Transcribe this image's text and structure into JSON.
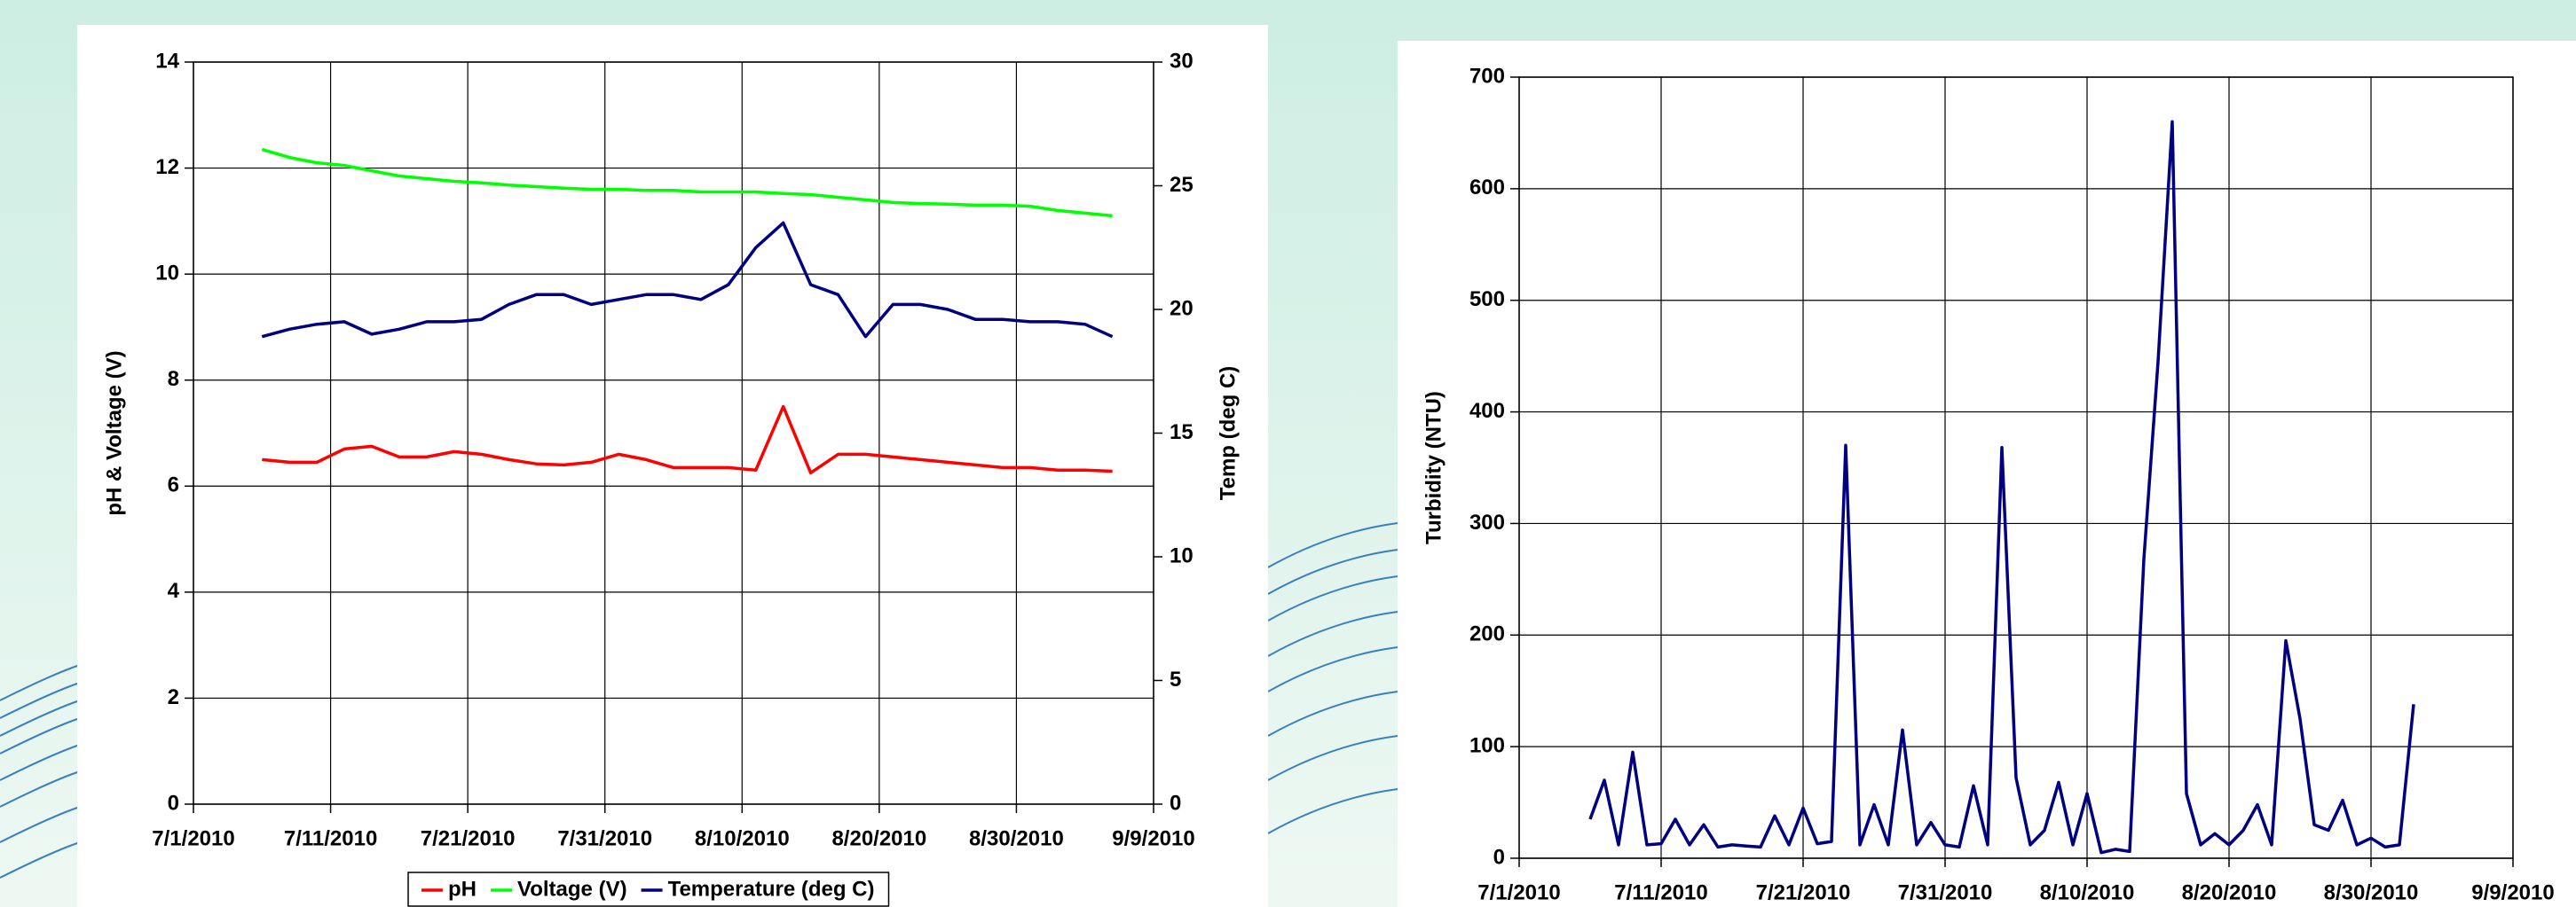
{
  "chart_data": [
    {
      "type": "line",
      "y_label": "pH & Voltage (V)",
      "y2_label": "Temp (deg C)",
      "x": [
        "7/6/2010",
        "7/8/2010",
        "7/10/2010",
        "7/12/2010",
        "7/14/2010",
        "7/16/2010",
        "7/18/2010",
        "7/20/2010",
        "7/22/2010",
        "7/24/2010",
        "7/26/2010",
        "7/28/2010",
        "7/30/2010",
        "8/1/2010",
        "8/3/2010",
        "8/5/2010",
        "8/7/2010",
        "8/9/2010",
        "8/11/2010",
        "8/13/2010",
        "8/15/2010",
        "8/17/2010",
        "8/19/2010",
        "8/21/2010",
        "8/23/2010",
        "8/25/2010",
        "8/27/2010",
        "8/29/2010",
        "8/31/2010",
        "9/2/2010",
        "9/4/2010",
        "9/6/2010"
      ],
      "series": [
        {
          "name": "pH",
          "color": "#ff0000",
          "axis": "y",
          "values": [
            6.5,
            6.45,
            6.45,
            6.7,
            6.75,
            6.55,
            6.55,
            6.65,
            6.6,
            6.5,
            6.42,
            6.4,
            6.45,
            6.6,
            6.5,
            6.35,
            6.35,
            6.35,
            6.3,
            7.5,
            6.25,
            6.6,
            6.6,
            6.55,
            6.5,
            6.45,
            6.4,
            6.35,
            6.35,
            6.3,
            6.3,
            6.28
          ]
        },
        {
          "name": "Voltage (V)",
          "color": "#00ff00",
          "axis": "y",
          "values": [
            12.35,
            12.2,
            12.1,
            12.05,
            11.95,
            11.85,
            11.8,
            11.75,
            11.72,
            11.68,
            11.65,
            11.62,
            11.6,
            11.6,
            11.58,
            11.58,
            11.55,
            11.55,
            11.55,
            11.52,
            11.5,
            11.45,
            11.4,
            11.35,
            11.33,
            11.32,
            11.3,
            11.3,
            11.28,
            11.2,
            11.15,
            11.1
          ]
        },
        {
          "name": "Temperature (deg C)",
          "color": "#000080",
          "axis": "y2",
          "values": [
            18.9,
            19.2,
            19.4,
            19.5,
            19.0,
            19.2,
            19.5,
            19.5,
            19.6,
            20.2,
            20.6,
            20.6,
            20.2,
            20.4,
            20.6,
            20.6,
            20.4,
            21.0,
            22.5,
            23.5,
            21.0,
            20.6,
            18.9,
            20.2,
            20.2,
            20.0,
            19.6,
            19.6,
            19.5,
            19.5,
            19.4,
            18.9
          ]
        }
      ],
      "xlim": [
        "7/1/2010",
        "9/9/2010"
      ],
      "xticks": [
        "7/1/2010",
        "7/11/2010",
        "7/21/2010",
        "7/31/2010",
        "8/10/2010",
        "8/20/2010",
        "8/30/2010",
        "9/9/2010"
      ],
      "ylim": [
        0,
        14
      ],
      "yticks": [
        0,
        2,
        4,
        6,
        8,
        10,
        12,
        14
      ],
      "y2lim": [
        0,
        30
      ],
      "y2ticks": [
        0,
        5,
        10,
        15,
        20,
        25,
        30
      ],
      "grid": true,
      "legend": "bottom"
    },
    {
      "type": "line",
      "y_label": "Turbidity (NTU)",
      "x": [
        "7/6/2010",
        "7/7/2010",
        "7/8/2010",
        "7/9/2010",
        "7/10/2010",
        "7/11/2010",
        "7/12/2010",
        "7/13/2010",
        "7/14/2010",
        "7/15/2010",
        "7/16/2010",
        "7/17/2010",
        "7/18/2010",
        "7/19/2010",
        "7/20/2010",
        "7/21/2010",
        "7/22/2010",
        "7/23/2010",
        "7/24/2010",
        "7/25/2010",
        "7/26/2010",
        "7/27/2010",
        "7/28/2010",
        "7/29/2010",
        "7/30/2010",
        "7/31/2010",
        "8/1/2010",
        "8/2/2010",
        "8/3/2010",
        "8/4/2010",
        "8/5/2010",
        "8/6/2010",
        "8/7/2010",
        "8/8/2010",
        "8/9/2010",
        "8/10/2010",
        "8/11/2010",
        "8/12/2010",
        "8/13/2010",
        "8/14/2010",
        "8/15/2010",
        "8/16/2010",
        "8/17/2010",
        "8/18/2010",
        "8/19/2010",
        "8/20/2010",
        "8/21/2010",
        "8/22/2010",
        "8/23/2010",
        "8/24/2010",
        "8/25/2010",
        "8/26/2010",
        "8/27/2010",
        "8/28/2010",
        "8/29/2010",
        "8/30/2010",
        "8/31/2010",
        "9/1/2010",
        "9/2/2010"
      ],
      "color": "#000080",
      "values": [
        35,
        70,
        12,
        95,
        12,
        13,
        35,
        12,
        30,
        10,
        12,
        11,
        10,
        38,
        12,
        45,
        13,
        15,
        370,
        12,
        48,
        12,
        115,
        12,
        32,
        12,
        10,
        65,
        12,
        368,
        72,
        12,
        25,
        68,
        12,
        58,
        5,
        8,
        6,
        268,
        445,
        660,
        58,
        12,
        22,
        12,
        25,
        48,
        12,
        195,
        125,
        30,
        25,
        52,
        12,
        18,
        10,
        12,
        138
      ],
      "xlim": [
        "7/1/2010",
        "9/9/2010"
      ],
      "xticks": [
        "7/1/2010",
        "7/11/2010",
        "7/21/2010",
        "7/31/2010",
        "8/10/2010",
        "8/20/2010",
        "8/30/2010",
        "9/9/2010"
      ],
      "ylim": [
        0,
        700
      ],
      "yticks": [
        0,
        100,
        200,
        300,
        400,
        500,
        600,
        700
      ],
      "grid": true
    }
  ]
}
